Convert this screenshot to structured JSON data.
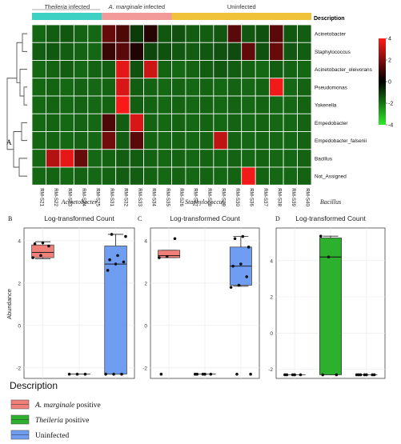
{
  "heatmap": {
    "panel_letter": "A",
    "groups": [
      {
        "label": "Theileria infected",
        "italic_word": "Theileria",
        "rest": " infected",
        "color": "#3dd1c4",
        "count": 5
      },
      {
        "label": "A. marginale infected",
        "italic_word": "A. marginale",
        "rest": " infected",
        "color": "#f29a9a",
        "count": 5
      },
      {
        "label": "Uninfected",
        "italic_word": "",
        "rest": "Uninfected",
        "color": "#f0c23a",
        "count": 10
      }
    ],
    "legend_title": "Description",
    "samples": [
      "RM-S21",
      "RM-S22",
      "RM-S23",
      "RM-S24",
      "RM-S25",
      "RM-S31",
      "RM-S32",
      "RM-S33",
      "RM-S34",
      "RM-S35",
      "RM-S26",
      "RM-S27",
      "RM-S28",
      "RM-S29",
      "RM-S30",
      "RM-S36",
      "RM-S37",
      "RM-S38",
      "RM-S39",
      "RM-S40"
    ],
    "rows": [
      "Acinetobacter",
      "Staphylococcus",
      "Acinetobacter_oleivorans",
      "Pseudomonas",
      "Yokenella",
      "Empedobacter",
      "Empedobacter_falsenii",
      "Bacillus",
      "Not_Assigned"
    ],
    "values": [
      [
        -1.8,
        -1.6,
        -1.5,
        -1.7,
        -1.8,
        1.6,
        1.2,
        -1.0,
        0.6,
        -1.5,
        -1.4,
        -1.6,
        -1.6,
        -1.5,
        1.4,
        -1.5,
        -1.4,
        1.4,
        -1.5,
        -1.6
      ],
      [
        -1.6,
        -1.5,
        -1.6,
        -1.7,
        -1.8,
        0.9,
        1.4,
        0.5,
        -1.2,
        -1.4,
        -1.5,
        -1.6,
        -1.5,
        -1.4,
        -1.3,
        1.5,
        -1.4,
        1.6,
        -1.5,
        -1.6
      ],
      [
        -1.8,
        -1.7,
        -1.6,
        -1.8,
        -1.7,
        -1.6,
        3.6,
        -1.4,
        3.2,
        -1.7,
        -1.8,
        -1.7,
        -1.6,
        -1.5,
        -1.6,
        -1.7,
        -1.8,
        -1.6,
        -1.7,
        -1.8
      ],
      [
        -1.8,
        -1.7,
        -1.8,
        -1.7,
        -1.8,
        -1.7,
        3.4,
        -1.6,
        -1.7,
        -1.8,
        -1.7,
        -1.8,
        -1.7,
        -1.8,
        -1.7,
        -1.8,
        -1.7,
        3.8,
        -1.8,
        -1.7
      ],
      [
        -1.8,
        -1.7,
        -1.8,
        -1.7,
        -1.8,
        -1.7,
        3.9,
        -1.6,
        -1.7,
        -1.8,
        -1.7,
        -1.8,
        -1.7,
        -1.8,
        -1.7,
        -1.8,
        -1.7,
        -1.8,
        -1.8,
        -1.7
      ],
      [
        -1.8,
        -1.7,
        -1.8,
        -1.7,
        -1.8,
        1.2,
        -1.6,
        3.4,
        -1.7,
        -1.8,
        -1.7,
        -1.8,
        -1.7,
        -1.8,
        -1.7,
        -1.8,
        -1.7,
        -1.8,
        -1.8,
        -1.7
      ],
      [
        -1.8,
        -1.7,
        -1.8,
        -1.7,
        -1.8,
        1.8,
        -1.6,
        1.4,
        -1.7,
        -1.8,
        -1.7,
        -1.8,
        -1.7,
        3.0,
        -1.7,
        -1.8,
        -1.7,
        -1.8,
        -1.8,
        -1.7
      ],
      [
        -1.8,
        2.8,
        3.6,
        1.6,
        -1.8,
        -1.7,
        -1.6,
        -1.6,
        -1.7,
        -1.8,
        -1.7,
        -1.8,
        -1.7,
        -1.8,
        -1.7,
        -1.8,
        -1.7,
        -1.8,
        -1.8,
        -1.7
      ],
      [
        -1.8,
        -1.7,
        -1.8,
        -1.7,
        -1.8,
        -1.7,
        -1.6,
        -1.6,
        -1.7,
        -1.8,
        -1.7,
        -1.8,
        -1.7,
        -1.8,
        -1.7,
        3.8,
        -1.7,
        -1.8,
        -1.8,
        -1.7
      ]
    ],
    "color_scale": {
      "min": -4,
      "max": 4,
      "ticks": [
        "4",
        "2",
        "0",
        "-2",
        "-4"
      ],
      "low": "#2ee82a",
      "mid": "#000000",
      "high": "#ff1a1a"
    }
  },
  "boxplots": {
    "y_axis_label": "Abundance",
    "panels": [
      {
        "letter": "B",
        "organism": "Acinetobacter",
        "subtitle": "Log-transformed Count",
        "ticks": [
          "4",
          "2",
          "0",
          "-2"
        ]
      },
      {
        "letter": "C",
        "organism": "Staphylococcus",
        "subtitle": "Log-transformed Count",
        "ticks": [
          "4",
          "2",
          "0",
          "-2"
        ]
      },
      {
        "letter": "D",
        "organism": "Bacillus",
        "subtitle": "Log-transformed Count",
        "ticks": [
          "4",
          "2",
          "0",
          "-2"
        ]
      }
    ]
  },
  "legend": {
    "title": "Description",
    "items": [
      {
        "italic": "A. marginale",
        "rest": " positive",
        "color": "#f07f79"
      },
      {
        "italic": "Theileria",
        "rest": " positive",
        "color": "#2db02d"
      },
      {
        "italic": "",
        "rest": "Uninfected",
        "color": "#6f9df2"
      }
    ]
  },
  "chart_data": [
    {
      "type": "heatmap",
      "title": "",
      "x": [
        "RM-S21",
        "RM-S22",
        "RM-S23",
        "RM-S24",
        "RM-S25",
        "RM-S31",
        "RM-S32",
        "RM-S33",
        "RM-S34",
        "RM-S35",
        "RM-S26",
        "RM-S27",
        "RM-S28",
        "RM-S29",
        "RM-S30",
        "RM-S36",
        "RM-S37",
        "RM-S38",
        "RM-S39",
        "RM-S40"
      ],
      "y": [
        "Acinetobacter",
        "Staphylococcus",
        "Acinetobacter_oleivorans",
        "Pseudomonas",
        "Yokenella",
        "Empedobacter",
        "Empedobacter_falsenii",
        "Bacillus",
        "Not_Assigned"
      ],
      "zlim": [
        -4,
        4
      ]
    },
    {
      "type": "box",
      "title": "Acinetobacter",
      "subtitle": "Log-transformed Count",
      "ylabel": "Abundance",
      "ylim": [
        -2.5,
        4.6
      ],
      "series": [
        {
          "name": "A. marginale positive",
          "color": "#f07f79",
          "box": {
            "q1": 3.2,
            "median": 3.45,
            "q3": 3.8,
            "whisker_low": 3.15,
            "whisker_high": 3.95
          },
          "points": [
            3.2,
            3.3,
            3.75,
            3.85,
            3.9
          ]
        },
        {
          "name": "Theileria positive",
          "color": "#2db02d",
          "box": null,
          "points": [
            -2.3,
            -2.3,
            -2.3
          ]
        },
        {
          "name": "Uninfected",
          "color": "#6f9df2",
          "box": {
            "q1": -2.3,
            "median": 2.9,
            "q3": 3.75,
            "whisker_low": -2.3,
            "whisker_high": 4.3
          },
          "points": [
            -2.3,
            -2.3,
            -2.3,
            2.6,
            2.9,
            3.0,
            3.1,
            3.3,
            4.2,
            4.3
          ]
        }
      ]
    },
    {
      "type": "box",
      "title": "Staphylococcus",
      "subtitle": "Log-transformed Count",
      "ylabel": "",
      "ylim": [
        -2.5,
        4.6
      ],
      "series": [
        {
          "name": "A. marginale positive",
          "color": "#f07f79",
          "box": {
            "q1": 3.2,
            "median": 3.3,
            "q3": 3.55,
            "whisker_low": 3.2,
            "whisker_high": 3.55
          },
          "points": [
            3.2,
            3.25,
            4.1,
            -2.3
          ]
        },
        {
          "name": "Theileria positive",
          "color": "#2db02d",
          "box": null,
          "points": [
            -2.3,
            -2.3,
            -2.3,
            -2.3,
            -2.3
          ]
        },
        {
          "name": "Uninfected",
          "color": "#6f9df2",
          "box": {
            "q1": 1.9,
            "median": 2.8,
            "q3": 3.7,
            "whisker_low": 1.85,
            "whisker_high": 4.2
          },
          "points": [
            1.8,
            1.9,
            2.3,
            2.8,
            2.9,
            3.7,
            4.1,
            4.2,
            -2.3,
            -2.3
          ]
        }
      ]
    },
    {
      "type": "box",
      "title": "Bacillus",
      "subtitle": "Log-transformed Count",
      "ylabel": "",
      "ylim": [
        -2.5,
        5.8
      ],
      "series": [
        {
          "name": "A. marginale positive",
          "color": "#f07f79",
          "box": null,
          "points": [
            -2.3,
            -2.3,
            -2.3,
            -2.3,
            -2.3
          ]
        },
        {
          "name": "Theileria positive",
          "color": "#2db02d",
          "box": {
            "q1": -2.3,
            "median": 4.2,
            "q3": 5.25,
            "whisker_low": -2.3,
            "whisker_high": 5.35
          },
          "points": [
            5.35,
            4.2,
            -2.3,
            -2.3
          ]
        },
        {
          "name": "Uninfected",
          "color": "#6f9df2",
          "box": null,
          "points": [
            -2.3,
            -2.3,
            -2.3,
            -2.3,
            -2.3,
            -2.3,
            -2.3
          ]
        }
      ]
    }
  ]
}
